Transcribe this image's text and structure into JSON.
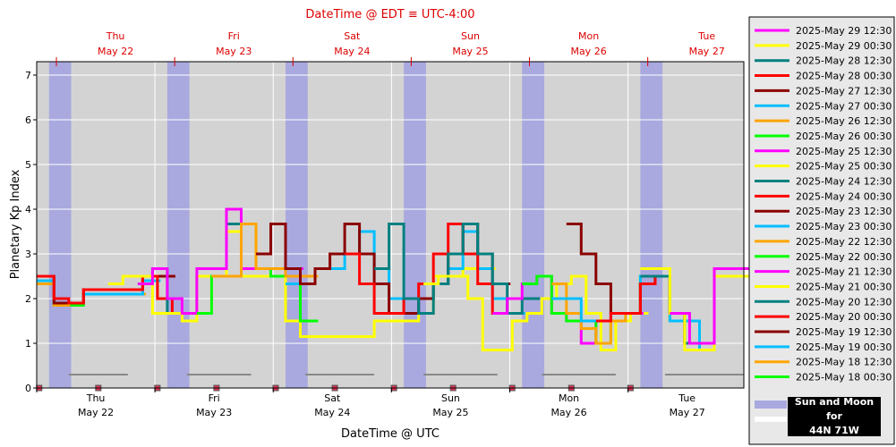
{
  "chart_data": {
    "type": "line",
    "title": "DateTime @ EDT ≡ UTC-4:00",
    "xlabel": "DateTime @ UTC",
    "ylabel": "Planetary Kp Index",
    "ylim": [
      0,
      7.3
    ],
    "yticks": [
      "0",
      "1",
      "2",
      "3",
      "4",
      "5",
      "6",
      "7"
    ],
    "x_range_hours_from_may21_12utc": [
      0,
      143.5
    ],
    "days": [
      {
        "day": "Thu",
        "date": "May 22",
        "x": 12
      },
      {
        "day": "Fri",
        "date": "May 23",
        "x": 36
      },
      {
        "day": "Sat",
        "date": "May 24",
        "x": 60
      },
      {
        "day": "Sun",
        "date": "May 25",
        "x": 84
      },
      {
        "day": "Mon",
        "date": "May 26",
        "x": 108
      },
      {
        "day": "Tue",
        "date": "May 27",
        "x": 132
      }
    ],
    "top_days": [
      {
        "day": "Thu",
        "date": "May 22",
        "x": 16
      },
      {
        "day": "Fri",
        "date": "May 23",
        "x": 40
      },
      {
        "day": "Sat",
        "date": "May 24",
        "x": 64
      },
      {
        "day": "Sun",
        "date": "May 25",
        "x": 88
      },
      {
        "day": "Mon",
        "date": "May 26",
        "x": 112
      },
      {
        "day": "Tue",
        "date": "May 27",
        "x": 136
      }
    ],
    "night_bands": [
      [
        2.5,
        7
      ],
      [
        26.5,
        31
      ],
      [
        50.5,
        55
      ],
      [
        74.5,
        79
      ],
      [
        98.5,
        103
      ],
      [
        122.5,
        127
      ]
    ],
    "moon_bars": [
      [
        6.5,
        18.5
      ],
      [
        30.5,
        43.5
      ],
      [
        54.5,
        68.5
      ],
      [
        78.5,
        93.5
      ],
      [
        102.5,
        117.5
      ],
      [
        127.5,
        143.5
      ]
    ],
    "moon_markers": [
      0.5,
      12.5,
      24.5,
      36.5,
      48.5,
      60.5,
      72.5,
      84.5,
      96.5,
      108.5,
      120.5
    ],
    "series": [
      {
        "name": "2025-May 29 12:30",
        "color": "#ff00ff",
        "width": 3,
        "x": [
          128.5,
          132.5,
          137.5,
          143.5
        ],
        "y": [
          1.67,
          1.0,
          2.67,
          2.67
        ]
      },
      {
        "name": "2025-May 29 00:30",
        "color": "#ffff00",
        "width": 3,
        "x": [
          122.5,
          128.5,
          131.5,
          134.5,
          137.5,
          140.5,
          143.5
        ],
        "y": [
          2.67,
          1.67,
          0.85,
          0.85,
          2.5,
          2.5,
          2.5
        ]
      },
      {
        "name": "2025-May 28 12:30",
        "color": "#008080",
        "width": 3,
        "x": [
          122.5,
          128.5,
          131.5,
          137.5,
          143.5
        ],
        "y": [
          2.5,
          1.67,
          1.0,
          2.67,
          2.67
        ]
      },
      {
        "name": "2025-May 28 00:30",
        "color": "#ff0000",
        "width": 3,
        "x": [
          113.5,
          116.5,
          119.5,
          122.5,
          125.5,
          128.5,
          131.5,
          137.5
        ],
        "y": [
          1.5,
          1.67,
          1.67,
          2.33,
          2.5,
          1.67,
          1.0,
          2.67
        ]
      },
      {
        "name": "2025-May 27 12:30",
        "color": "#8b0000",
        "width": 3,
        "x": [
          107.5,
          110.5,
          113.5,
          116.5,
          119.5,
          122.5,
          125.5,
          128.5,
          131.5,
          137.5
        ],
        "y": [
          3.67,
          3.0,
          2.33,
          1.67,
          1.67,
          2.33,
          2.5,
          1.67,
          1.0,
          2.67
        ]
      },
      {
        "name": "2025-May 27 00:30",
        "color": "#00bfff",
        "width": 3,
        "x": [
          104.5,
          107.5,
          110.5,
          113.5,
          116.5,
          119.5,
          122.5,
          128.5,
          134.5,
          137.5
        ],
        "y": [
          2.0,
          2.0,
          1.5,
          1.5,
          1.67,
          1.67,
          2.5,
          1.5,
          0.85,
          2.5
        ]
      },
      {
        "name": "2025-May 26 12:30",
        "color": "#ffa500",
        "width": 3,
        "x": [
          104.5,
          107.5,
          110.5,
          113.5,
          116.5,
          119.5,
          122.5,
          128.5
        ],
        "y": [
          2.33,
          1.67,
          1.33,
          1.0,
          1.5,
          1.67,
          2.5,
          1.5
        ]
      },
      {
        "name": "2025-May 26 00:30",
        "color": "#00ff00",
        "width": 3,
        "x": [
          98.5,
          101.5,
          104.5,
          107.5,
          110.5,
          113.5,
          116.5,
          119.5,
          122.5,
          128.5
        ],
        "y": [
          2.33,
          2.5,
          1.67,
          1.5,
          1.5,
          1.0,
          1.5,
          1.67,
          2.5,
          1.5
        ]
      },
      {
        "name": "2025-May 25 12:30",
        "color": "#ff00ff",
        "width": 3,
        "x": [
          92.5,
          95.5,
          98.5,
          101.5,
          104.5,
          107.5,
          110.5,
          113.5,
          116.5,
          119.5
        ],
        "y": [
          1.67,
          2.0,
          2.33,
          2.5,
          1.67,
          1.5,
          1.0,
          1.5,
          1.67,
          1.67
        ]
      },
      {
        "name": "2025-May 25 00:30",
        "color": "#ffff00",
        "width": 3,
        "x": [
          78.5,
          81.5,
          84.5,
          87.5,
          90.5,
          93.5,
          96.5,
          99.5,
          102.5,
          105.5,
          108.5,
          111.5,
          114.5,
          117.5,
          120.5
        ],
        "y": [
          2.33,
          2.5,
          2.5,
          2.0,
          0.85,
          0.85,
          1.5,
          1.67,
          2.0,
          2.33,
          2.5,
          1.67,
          0.85,
          1.5,
          1.67
        ]
      },
      {
        "name": "2025-May 24 12:30",
        "color": "#008080",
        "width": 3,
        "x": [
          68.5,
          71.5,
          74.5,
          77.5,
          80.5,
          83.5,
          86.5,
          89.5,
          92.5,
          95.5,
          98.5
        ],
        "y": [
          2.67,
          3.67,
          2.0,
          1.67,
          2.33,
          3.0,
          3.67,
          3.0,
          2.33,
          1.67,
          2.0
        ]
      },
      {
        "name": "2025-May 24 00:30",
        "color": "#ff0000",
        "width": 3,
        "x": [
          62.5,
          65.5,
          68.5,
          71.5,
          74.5,
          77.5,
          80.5,
          83.5,
          86.5,
          89.5,
          92.5,
          95.5
        ],
        "y": [
          3.0,
          2.33,
          1.67,
          1.67,
          2.0,
          2.33,
          3.0,
          3.67,
          3.0,
          2.33,
          1.67,
          2.0
        ]
      },
      {
        "name": "2025-May 23 12:30",
        "color": "#8b0000",
        "width": 3,
        "x": [
          44.5,
          47.5,
          50.5,
          53.5,
          56.5,
          59.5,
          62.5,
          65.5,
          68.5,
          71.5,
          74.5,
          77.5,
          80.5,
          83.5,
          86.5,
          89.5,
          92.5
        ],
        "y": [
          3.0,
          3.67,
          2.67,
          2.33,
          2.67,
          3.0,
          3.67,
          3.0,
          2.33,
          1.67,
          1.67,
          2.0,
          2.33,
          3.0,
          3.67,
          3.0,
          2.33
        ]
      },
      {
        "name": "2025-May 23 00:30",
        "color": "#00bfff",
        "width": 3,
        "x": [
          50.5,
          53.5,
          56.5,
          59.5,
          62.5,
          65.5,
          68.5,
          71.5,
          74.5,
          77.5,
          80.5,
          83.5,
          86.5,
          89.5,
          92.5,
          95.5
        ],
        "y": [
          2.33,
          2.33,
          2.67,
          2.67,
          3.0,
          3.5,
          2.67,
          2.0,
          1.67,
          2.0,
          2.33,
          2.67,
          3.5,
          2.67,
          2.0,
          1.67
        ]
      },
      {
        "name": "2025-May 22 12:30",
        "color": "#ffa500",
        "width": 3,
        "x": [
          35.5,
          38.5,
          41.5,
          44.5,
          47.5,
          50.5,
          53.5
        ],
        "y": [
          2.5,
          2.5,
          3.67,
          2.67,
          2.67,
          2.5,
          2.5
        ]
      },
      {
        "name": "2025-May 22 00:30",
        "color": "#00ff00",
        "width": 3,
        "x": [
          32.5,
          35.5,
          38.5,
          41.5,
          44.5,
          47.5,
          50.5,
          53.5
        ],
        "y": [
          1.67,
          2.5,
          2.5,
          3.67,
          2.67,
          2.5,
          2.5,
          1.5
        ]
      },
      {
        "name": "2025-May 21 12:30",
        "color": "#ff00ff",
        "width": 3,
        "x": [
          20.5,
          23.5,
          26.5,
          29.5,
          32.5,
          35.5,
          38.5,
          41.5,
          44.5,
          47.5,
          50.5
        ],
        "y": [
          2.33,
          2.67,
          2.0,
          1.67,
          2.67,
          2.67,
          4.0,
          2.67,
          2.67,
          2.67,
          2.67
        ]
      },
      {
        "name": "2025-May 21 00:30",
        "color": "#ffff00",
        "width": 3,
        "x": [
          14.5,
          17.5,
          20.5,
          23.5,
          26.5,
          29.5,
          32.5,
          35.5,
          38.5,
          41.5,
          44.5,
          47.5,
          50.5,
          53.5,
          56.5,
          59.5,
          62.5,
          65.5,
          68.5,
          71.5,
          74.5,
          77.5,
          80.5,
          83.5,
          86.5,
          89.5
        ],
        "y": [
          2.33,
          2.5,
          2.5,
          1.67,
          1.67,
          1.5,
          2.5,
          2.5,
          3.5,
          2.5,
          2.5,
          2.5,
          1.5,
          1.15,
          1.15,
          1.15,
          1.15,
          1.15,
          1.5,
          1.5,
          1.5,
          1.67,
          2.5,
          2.5,
          2.67,
          2.67
        ]
      },
      {
        "name": "2025-May 20 12:30",
        "color": "#008080",
        "width": 3,
        "x": [
          20.5,
          23.5,
          26.5,
          29.5,
          32.5,
          35.5,
          38.5,
          41.5,
          44.5
        ],
        "y": [
          2.33,
          2.67,
          1.67,
          1.67,
          2.5,
          2.5,
          3.67,
          2.5,
          2.5
        ]
      },
      {
        "name": "2025-May 20 00:30",
        "color": "#ff0000",
        "width": 3,
        "x": [
          0,
          3.5,
          6.5,
          9.5,
          12.5,
          15.5,
          18.5,
          21.5,
          24.5,
          27.5,
          30.5
        ],
        "y": [
          2.5,
          2.0,
          1.9,
          2.2,
          2.2,
          2.2,
          2.2,
          2.5,
          2.0,
          1.67,
          1.67
        ]
      },
      {
        "name": "2025-May 19 12:30",
        "color": "#8b0000",
        "width": 3,
        "x": [
          0,
          3.5,
          6.5,
          9.5,
          12.5,
          15.5,
          18.5,
          21.5,
          24.5
        ],
        "y": [
          2.5,
          1.9,
          1.9,
          2.2,
          2.2,
          2.2,
          2.2,
          2.5,
          2.5
        ]
      },
      {
        "name": "2025-May 19 00:30",
        "color": "#00bfff",
        "width": 3,
        "x": [
          0,
          3.5,
          6.5,
          9.5,
          12.5,
          15.5,
          18.5,
          21.5
        ],
        "y": [
          2.4,
          1.9,
          1.9,
          2.1,
          2.1,
          2.1,
          2.1,
          2.4
        ]
      },
      {
        "name": "2025-May 18 12:30",
        "color": "#ffa500",
        "width": 3,
        "x": [
          0,
          3.5,
          6.5,
          9.5,
          12.5,
          15.5,
          18.5
        ],
        "y": [
          2.33,
          1.85,
          1.9,
          2.1,
          2.1,
          2.1,
          2.1
        ]
      },
      {
        "name": "2025-May 18 00:30",
        "color": "#00ff00",
        "width": 3,
        "x": [
          0,
          3.5,
          6.5,
          9.5,
          12.5,
          15.5,
          18.5
        ],
        "y": [
          2.33,
          1.85,
          1.85,
          2.1,
          2.1,
          2.1,
          2.1
        ]
      }
    ],
    "legend": {
      "position": "right"
    },
    "grid": true
  },
  "sun_moon": {
    "title": "Sun and Moon for",
    "location": "44N 71W"
  }
}
